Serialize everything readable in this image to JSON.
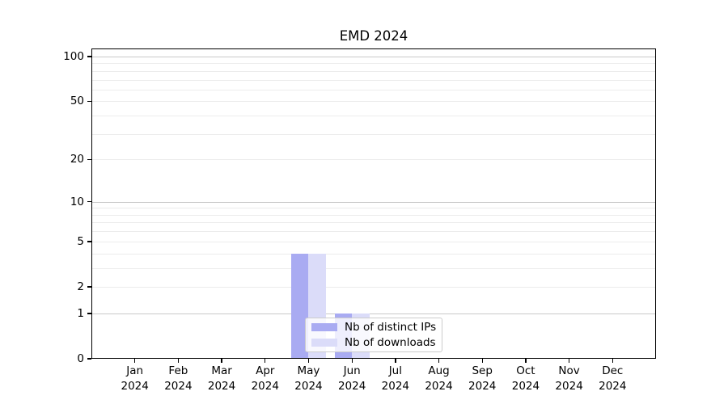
{
  "chart_data": {
    "type": "bar",
    "title": "EMD 2024",
    "categories": [
      "Jan",
      "Feb",
      "Mar",
      "Apr",
      "May",
      "Jun",
      "Jul",
      "Aug",
      "Sep",
      "Oct",
      "Nov",
      "Dec"
    ],
    "category_year": "2024",
    "series": [
      {
        "name": "Nb of distinct IPs",
        "color": "#a9abf2",
        "values": [
          0,
          0,
          0,
          0,
          4,
          1,
          0,
          0,
          0,
          0,
          0,
          0
        ]
      },
      {
        "name": "Nb of downloads",
        "color": "#dbdcf9",
        "values": [
          0,
          0,
          0,
          0,
          4,
          1,
          0,
          0,
          0,
          0,
          0,
          0
        ]
      }
    ],
    "xlabel": "",
    "ylabel": "",
    "y_scale": "log(1+y)",
    "y_axis": {
      "tick_values": [
        0,
        1,
        2,
        5,
        10,
        20,
        50,
        100
      ],
      "tick_labels": [
        "0",
        "1",
        "2",
        "5",
        "10",
        "20",
        "50",
        "100"
      ],
      "major_gridline_values": [
        1,
        10,
        100
      ],
      "minor_gridline_values": [
        2,
        3,
        4,
        5,
        6,
        7,
        8,
        9,
        20,
        30,
        40,
        50,
        60,
        70,
        80,
        90
      ],
      "max_log10_1p": 2.058
    },
    "legend_position": "lower center",
    "grid": "horizontal"
  },
  "colors": {
    "major_gridline": "#c9c9c9",
    "minor_gridline": "#ececec",
    "spine": "#000000",
    "legend_border": "#cccccc",
    "background": "#ffffff"
  }
}
